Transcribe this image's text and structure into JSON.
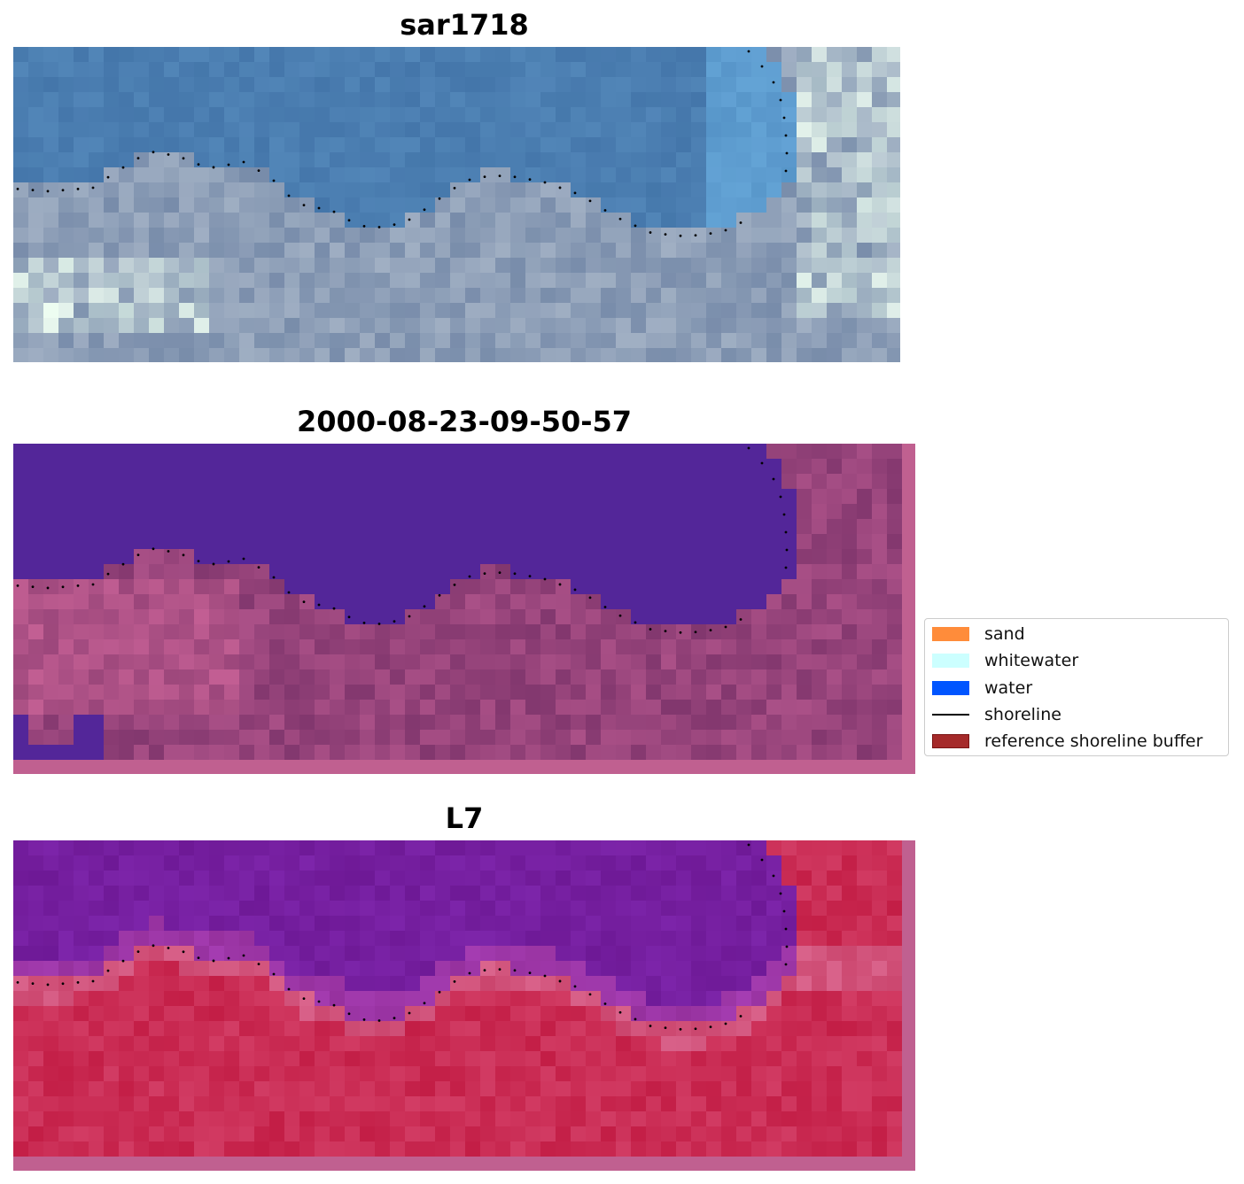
{
  "panels": [
    {
      "title": "sar1718",
      "style": "rgb"
    },
    {
      "title": "2000-08-23-09-50-57",
      "style": "classified"
    },
    {
      "title": "L7",
      "style": "index"
    }
  ],
  "legend": {
    "items": [
      {
        "label": "sand",
        "kind": "patch",
        "color": "#ff8c3a"
      },
      {
        "label": "whitewater",
        "kind": "patch",
        "color": "#ccffff"
      },
      {
        "label": "water",
        "kind": "patch",
        "color": "#0055ff"
      },
      {
        "label": "shoreline",
        "kind": "line",
        "color": "#000000"
      },
      {
        "label": "reference shoreline buffer",
        "kind": "patch",
        "color": "#a52a2a",
        "edge": "#7a1414"
      }
    ]
  },
  "colors": {
    "water_classified": "#532699",
    "land_classified": "#8a3a78",
    "buffer_pink": "#c06090",
    "water_index": "#7420a0",
    "land_index": "#c8264f"
  }
}
